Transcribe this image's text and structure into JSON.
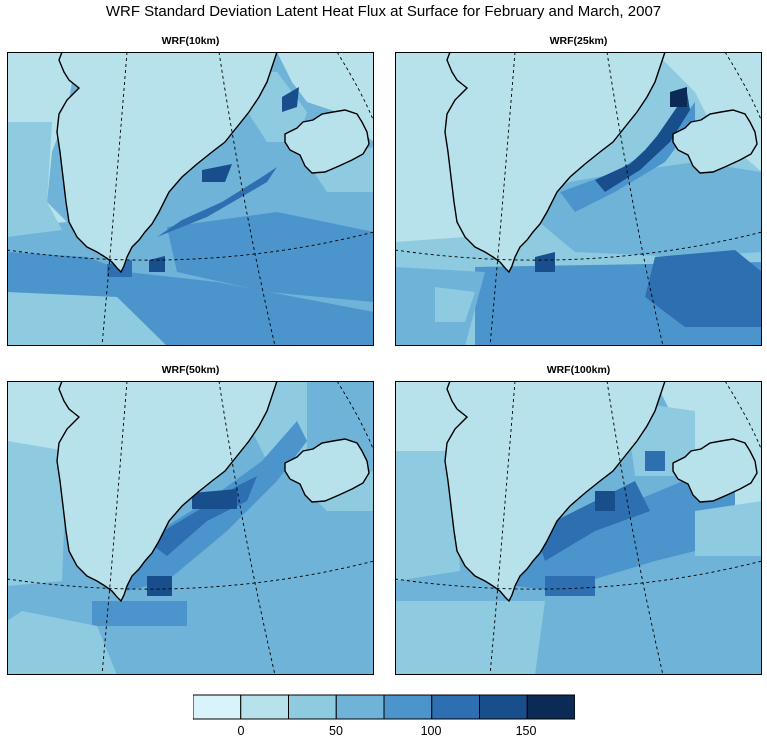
{
  "title": "WRF Standard Deviation Latent Heat Flux at Surface for February and March, 2007",
  "panels": [
    {
      "id": "p10",
      "title": "WRF(10km)"
    },
    {
      "id": "p25",
      "title": "WRF(25km)"
    },
    {
      "id": "p50",
      "title": "WRF(50km)"
    },
    {
      "id": "p100",
      "title": "WRF(100km)"
    }
  ],
  "colorbar": {
    "colors": [
      "#d8f3fa",
      "#b7e2ec",
      "#8ecbe0",
      "#6fb3d8",
      "#4c95cc",
      "#2d6fb1",
      "#184e8c",
      "#0b2a55"
    ],
    "tick_labels": [
      "0",
      "50",
      "100",
      "150"
    ],
    "tick_values": [
      0,
      50,
      100,
      150
    ],
    "boundaries": [
      -25,
      0,
      25,
      50,
      75,
      100,
      125,
      150,
      175
    ]
  },
  "colors": {
    "land": "#b7e2ec",
    "coast": "#000000",
    "gridlines": "#000000"
  },
  "map_features": [
    "Greenland",
    "Iceland"
  ]
}
